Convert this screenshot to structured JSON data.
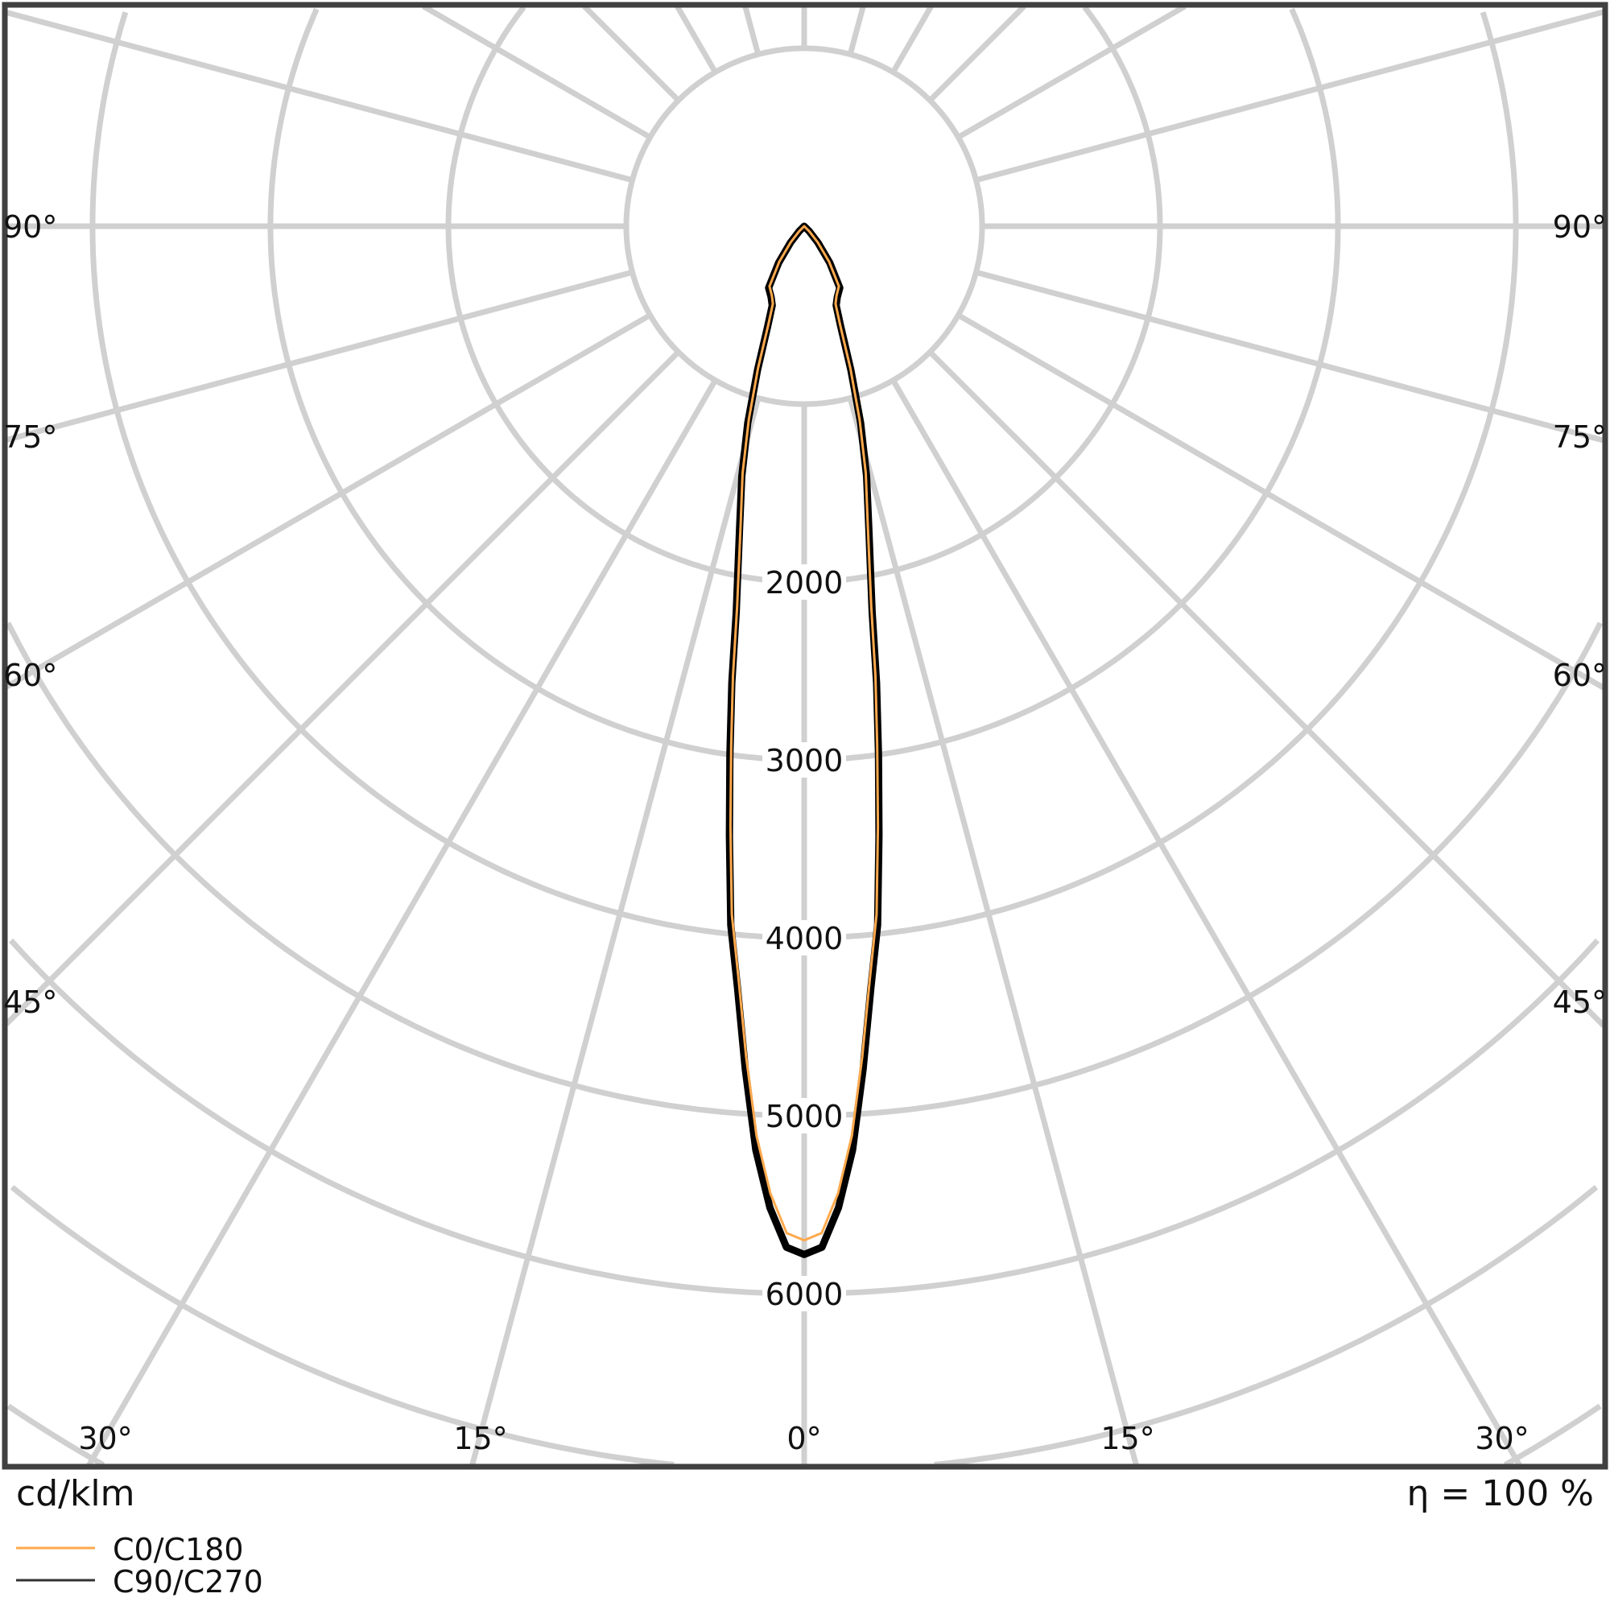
{
  "chart_data": {
    "type": "polar",
    "unit_label": "cd/klm",
    "efficiency_label": "η = 100 %",
    "radial_ticks": [
      1000,
      2000,
      3000,
      4000,
      5000,
      6000,
      7000,
      8000,
      9000
    ],
    "radial_tick_labels": [
      "2000",
      "3000",
      "4000",
      "5000",
      "6000"
    ],
    "angle_step_deg": 15,
    "angle_labels": {
      "left": [
        "90°",
        "75°",
        "60°",
        "45°"
      ],
      "right": [
        "90°",
        "75°",
        "60°",
        "45°"
      ],
      "bottom": [
        "30°",
        "15°",
        "0°",
        "15°",
        "30°"
      ]
    },
    "grid": true,
    "legend_placement": "bottom-left",
    "gamma_deg": [
      0,
      1,
      2,
      3,
      4,
      5,
      6,
      7,
      8,
      9,
      10,
      12,
      14,
      16,
      18,
      20,
      22,
      25,
      30,
      35,
      40,
      45,
      50,
      90
    ],
    "series": [
      {
        "name": "C0/C180",
        "color": "#ffa94d",
        "values": [
          5700,
          5660,
          5440,
          5120,
          4680,
          4240,
          3890,
          3400,
          2950,
          2560,
          2170,
          1720,
          1430,
          1130,
          840,
          590,
          470,
          430,
          390,
          245,
          118,
          40,
          0,
          0
        ]
      },
      {
        "name": "C90/C270",
        "color": "#000000",
        "values": [
          5780,
          5740,
          5520,
          5200,
          4750,
          4300,
          3950,
          3450,
          3000,
          2600,
          2200,
          1750,
          1450,
          1150,
          850,
          600,
          480,
          440,
          400,
          250,
          120,
          40,
          0,
          0
        ]
      }
    ],
    "colors": {
      "grid": "#d0d0d0",
      "frame": "#404040"
    }
  }
}
